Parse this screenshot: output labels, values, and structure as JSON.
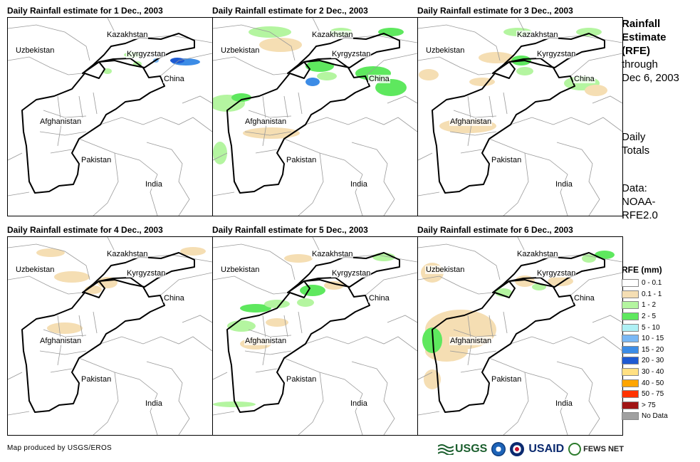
{
  "panels": [
    {
      "title": "Daily Rainfall estimate for 1 Dec., 2003"
    },
    {
      "title": "Daily Rainfall estimate for 2 Dec., 2003"
    },
    {
      "title": "Daily Rainfall estimate for 3 Dec., 2003"
    },
    {
      "title": "Daily Rainfall estimate for 4 Dec., 2003"
    },
    {
      "title": "Daily Rainfall estimate for 5 Dec., 2003"
    },
    {
      "title": "Daily Rainfall estimate for 6 Dec., 2003"
    }
  ],
  "map_labels": {
    "kazakhstan": "Kazakhstan",
    "uzbekistan": "Uzbekistan",
    "kyrgyzstan": "Kyrgyzstan",
    "china": "China",
    "afghanistan": "Afghanistan",
    "pakistan": "Pakistan",
    "india": "India"
  },
  "side": {
    "title_lines": [
      "Rainfall",
      "Estimate",
      "(RFE)"
    ],
    "through": "through",
    "through_date": "Dec 6, 2003",
    "daily": "Daily",
    "totals": "Totals",
    "data_label": "Data:",
    "data_src1": "NOAA-",
    "data_src2": "RFE2.0"
  },
  "legend": {
    "title": "RFE (mm)",
    "items": [
      {
        "label": "0 - 0.1",
        "color": "#ffffff"
      },
      {
        "label": "0.1 - 1",
        "color": "#f5deb3"
      },
      {
        "label": "1 - 2",
        "color": "#b4f5a0"
      },
      {
        "label": "2 - 5",
        "color": "#5ee85e"
      },
      {
        "label": "5 - 10",
        "color": "#aef0f5"
      },
      {
        "label": "10 - 15",
        "color": "#7ab8f5"
      },
      {
        "label": "15 - 20",
        "color": "#3c8ce6"
      },
      {
        "label": "20 - 30",
        "color": "#1e5ad2"
      },
      {
        "label": "30 - 40",
        "color": "#ffe082"
      },
      {
        "label": "40 - 50",
        "color": "#ffa500"
      },
      {
        "label": "50 - 75",
        "color": "#ff3300"
      },
      {
        "label": "> 75",
        "color": "#a01414"
      },
      {
        "label": "No Data",
        "color": "#a0a0a0"
      }
    ]
  },
  "credit": "Map produced by USGS/EROS",
  "logos": {
    "usgs": "USGS",
    "usaid": "USAID",
    "fews": "FEWS NET"
  }
}
